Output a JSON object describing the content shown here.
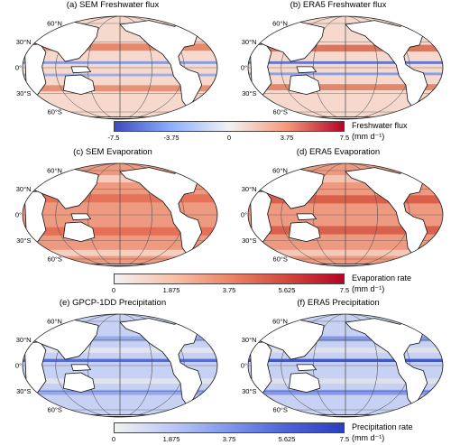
{
  "panels": [
    {
      "title": "(a) SEM Freshwater flux",
      "variable": "freshwater"
    },
    {
      "title": "(b) ERA5 Freshwater flux",
      "variable": "freshwater"
    },
    {
      "title": "(c) SEM Evaporation",
      "variable": "evaporation"
    },
    {
      "title": "(d) ERA5 Evaporation",
      "variable": "evaporation"
    },
    {
      "title": "(e) GPCP-1DD Precipitation",
      "variable": "precipitation"
    },
    {
      "title": "(f) ERA5 Precipitation",
      "variable": "precipitation"
    }
  ],
  "lat_labels": {
    "n60": "60°N",
    "n30": "30°N",
    "eq": "0°",
    "s30": "30°S",
    "s60": "60°S"
  },
  "colorbars": [
    {
      "id": "freshwater",
      "title": "Freshwater flux",
      "units": "(mm d⁻¹)",
      "ticks": [
        "-7.5",
        "-3.75",
        "0",
        "3.75",
        "7.5"
      ],
      "colors": [
        "#3b4cc0",
        "#8db0fe",
        "#f2f2f2",
        "#f49a7b",
        "#b40426"
      ]
    },
    {
      "id": "evaporation",
      "title": "Evaporation rate",
      "units": "(mm d⁻¹)",
      "ticks": [
        "0",
        "1.875",
        "3.75",
        "5.625",
        "7.5"
      ],
      "colors": [
        "#f2f2f2",
        "#f7c2ab",
        "#ee8468",
        "#d1493e",
        "#b40426"
      ]
    },
    {
      "id": "precipitation",
      "title": "Precipitation rate",
      "units": "(mm d⁻¹)",
      "ticks": [
        "0",
        "1.875",
        "3.75",
        "5.625",
        "7.5"
      ],
      "colors": [
        "#f2f2f2",
        "#bcc8f5",
        "#7e97ee",
        "#4c63d8",
        "#2a3fbf"
      ]
    }
  ]
}
